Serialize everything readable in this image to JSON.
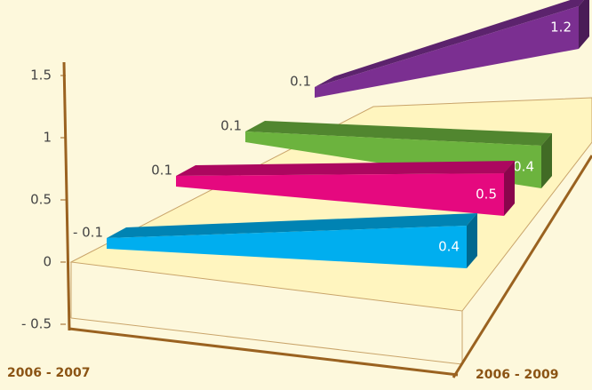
{
  "chart_data": {
    "type": "ribbon3d",
    "categories": [
      "2006 - 2007",
      "2006 - 2009"
    ],
    "series": [
      {
        "color": "#00aeef",
        "values": [
          -0.1,
          0.4
        ],
        "value_labels": [
          "- 0.1",
          "0.4"
        ]
      },
      {
        "color": "#e5097f",
        "values": [
          0.1,
          0.5
        ]
      },
      {
        "color": "#6cb33e",
        "values": [
          0.1,
          0.4
        ]
      },
      {
        "color": "#7b2f91",
        "values": [
          0.1,
          1.2
        ]
      }
    ],
    "ylim": [
      -0.5,
      1.5
    ],
    "yticks": [
      {
        "value": -0.5,
        "label": "- 0.5"
      },
      0,
      0.5,
      1,
      1.5
    ]
  }
}
